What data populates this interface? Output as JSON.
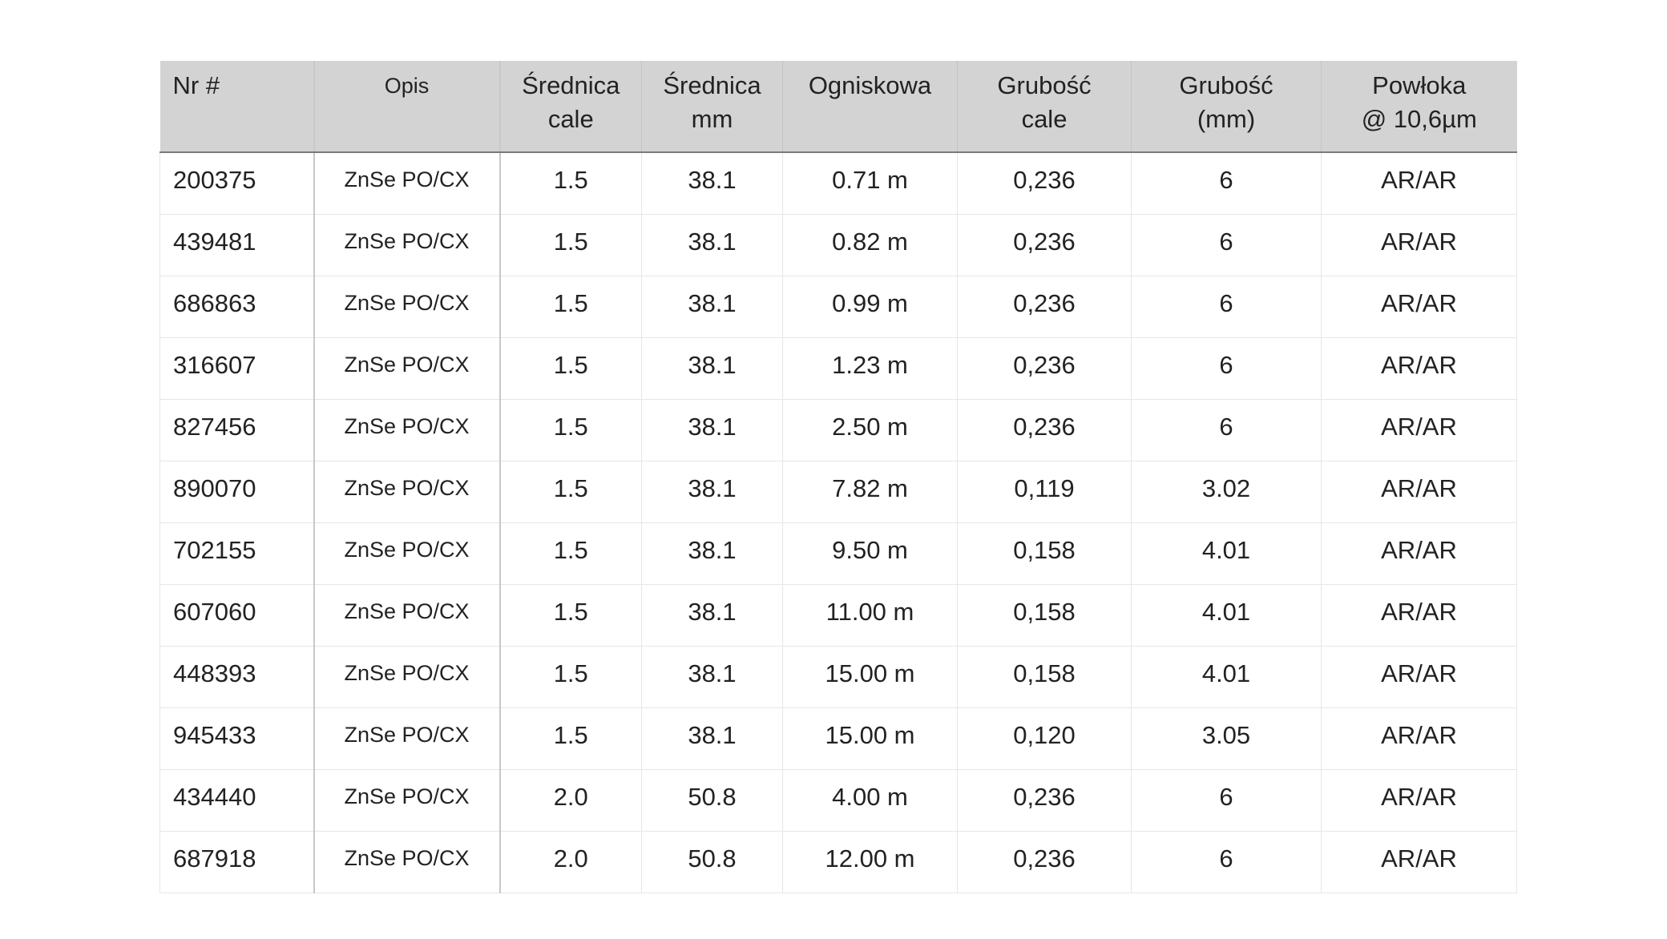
{
  "headers": [
    {
      "line1": "Nr #",
      "line2": ""
    },
    {
      "line1": "Opis",
      "line2": ""
    },
    {
      "line1": "Średnica",
      "line2": "cale"
    },
    {
      "line1": "Średnica",
      "line2": "mm"
    },
    {
      "line1": "Ogniskowa",
      "line2": ""
    },
    {
      "line1": "Grubość",
      "line2": "cale"
    },
    {
      "line1": "Grubość",
      "line2": "(mm)"
    },
    {
      "line1": "Powłoka",
      "line2": "@ 10,6µm"
    }
  ],
  "rows": [
    [
      "200375",
      "ZnSe PO/CX",
      "1.5",
      "38.1",
      "0.71 m",
      "0,236",
      "6",
      "AR/AR"
    ],
    [
      "439481",
      "ZnSe PO/CX",
      "1.5",
      "38.1",
      "0.82 m",
      "0,236",
      "6",
      "AR/AR"
    ],
    [
      "686863",
      "ZnSe PO/CX",
      "1.5",
      "38.1",
      "0.99 m",
      "0,236",
      "6",
      "AR/AR"
    ],
    [
      "316607",
      "ZnSe PO/CX",
      "1.5",
      "38.1",
      "1.23 m",
      "0,236",
      "6",
      "AR/AR"
    ],
    [
      "827456",
      "ZnSe PO/CX",
      "1.5",
      "38.1",
      "2.50 m",
      "0,236",
      "6",
      "AR/AR"
    ],
    [
      "890070",
      "ZnSe PO/CX",
      "1.5",
      "38.1",
      "7.82 m",
      "0,119",
      "3.02",
      "AR/AR"
    ],
    [
      "702155",
      "ZnSe PO/CX",
      "1.5",
      "38.1",
      "9.50 m",
      "0,158",
      "4.01",
      "AR/AR"
    ],
    [
      "607060",
      "ZnSe PO/CX",
      "1.5",
      "38.1",
      "11.00 m",
      "0,158",
      "4.01",
      "AR/AR"
    ],
    [
      "448393",
      "ZnSe PO/CX",
      "1.5",
      "38.1",
      "15.00 m",
      "0,158",
      "4.01",
      "AR/AR"
    ],
    [
      "945433",
      "ZnSe PO/CX",
      "1.5",
      "38.1",
      "15.00 m",
      "0,120",
      "3.05",
      "AR/AR"
    ],
    [
      "434440",
      "ZnSe PO/CX",
      "2.0",
      "50.8",
      "4.00 m",
      "0,236",
      "6",
      "AR/AR"
    ],
    [
      "687918",
      "ZnSe PO/CX",
      "2.0",
      "50.8",
      "12.00 m",
      "0,236",
      "6",
      "AR/AR"
    ]
  ]
}
